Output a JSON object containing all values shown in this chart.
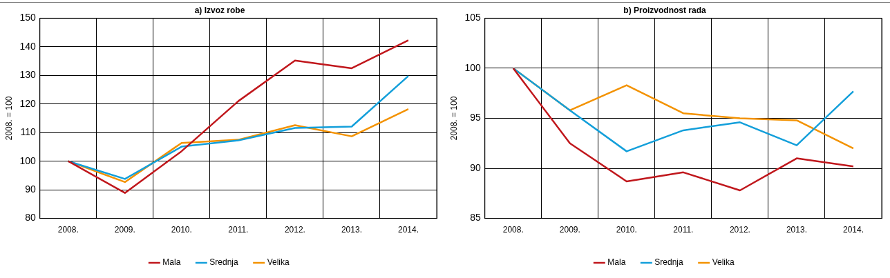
{
  "chart_data": [
    {
      "type": "line",
      "title": "a) Izvoz robe",
      "ylabel": "2008. = 100",
      "categories": [
        "2008.",
        "2009.",
        "2010.",
        "2011.",
        "2012.",
        "2013.",
        "2014."
      ],
      "ylim": [
        80,
        150
      ],
      "yticks": [
        80,
        90,
        100,
        110,
        120,
        130,
        140,
        150
      ],
      "grid": true,
      "legend": "bottom",
      "series": [
        {
          "name": "Mala",
          "color": "#c0171c",
          "values": [
            100,
            88.9,
            103.5,
            121,
            135.2,
            132.5,
            142.3
          ]
        },
        {
          "name": "Srednja",
          "color": "#139fda",
          "values": [
            100,
            93.8,
            105.1,
            107.3,
            111.6,
            112.1,
            129.8
          ]
        },
        {
          "name": "Velika",
          "color": "#f39200",
          "values": [
            100,
            92.7,
            106.4,
            107.5,
            112.6,
            108.7,
            118.2
          ]
        }
      ]
    },
    {
      "type": "line",
      "title": "b) Proizvodnost rada",
      "ylabel": "2008. = 100",
      "categories": [
        "2008.",
        "2009.",
        "2010.",
        "2011.",
        "2012.",
        "2013.",
        "2014."
      ],
      "ylim": [
        85,
        105
      ],
      "yticks": [
        85,
        90,
        95,
        100,
        105
      ],
      "grid": true,
      "legend": "bottom",
      "series": [
        {
          "name": "Mala",
          "color": "#c0171c",
          "values": [
            100,
            92.5,
            88.7,
            89.6,
            87.8,
            91.0,
            90.2
          ]
        },
        {
          "name": "Srednja",
          "color": "#139fda",
          "values": [
            100,
            95.8,
            91.7,
            93.8,
            94.6,
            92.3,
            97.7
          ]
        },
        {
          "name": "Velika",
          "color": "#f39200",
          "values": [
            100,
            95.8,
            98.3,
            95.5,
            95.0,
            94.8,
            92.0
          ]
        }
      ]
    }
  ]
}
